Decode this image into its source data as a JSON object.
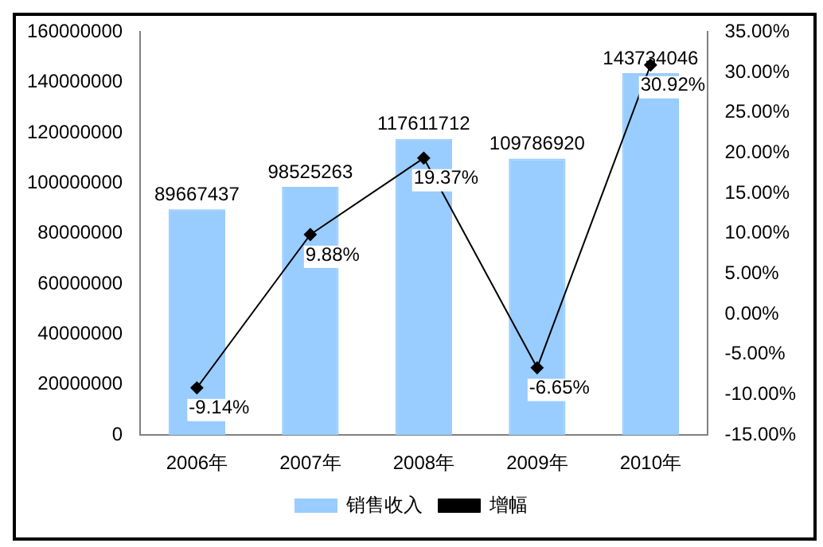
{
  "chart_data": {
    "type": "bar",
    "categories": [
      "2006年",
      "2007年",
      "2008年",
      "2009年",
      "2010年"
    ],
    "series": [
      {
        "name": "销售收入",
        "color": "#99ccff",
        "values": [
          89667437,
          98525263,
          117611712,
          109786920,
          143734046
        ]
      },
      {
        "name": "增幅",
        "type": "line",
        "axis": "y2",
        "color": "#000000",
        "marker": "diamond",
        "values": [
          -9.14,
          9.88,
          19.37,
          -6.65,
          30.92
        ],
        "value_labels": [
          "-9.14%",
          "9.88%",
          "19.37%",
          "-6.65%",
          "30.92%"
        ]
      }
    ],
    "ylim": [
      0,
      160000000
    ],
    "yticks": [
      0,
      20000000,
      40000000,
      60000000,
      80000000,
      100000000,
      120000000,
      140000000,
      160000000
    ],
    "y2lim": [
      -15,
      35
    ],
    "y2ticks": [
      {
        "value": -15,
        "label": "-15.00%"
      },
      {
        "value": -10,
        "label": "-10.00%"
      },
      {
        "value": -5,
        "label": "-5.00%"
      },
      {
        "value": 0,
        "label": "0.00%"
      },
      {
        "value": 5,
        "label": "5.00%"
      },
      {
        "value": 10,
        "label": "10.00%"
      },
      {
        "value": 15,
        "label": "15.00%"
      },
      {
        "value": 20,
        "label": "20.00%"
      },
      {
        "value": 25,
        "label": "25.00%"
      },
      {
        "value": 30,
        "label": "30.00%"
      },
      {
        "value": 35,
        "label": "35.00%"
      }
    ],
    "data_labels": true,
    "grid": false,
    "legend": "bottom"
  }
}
